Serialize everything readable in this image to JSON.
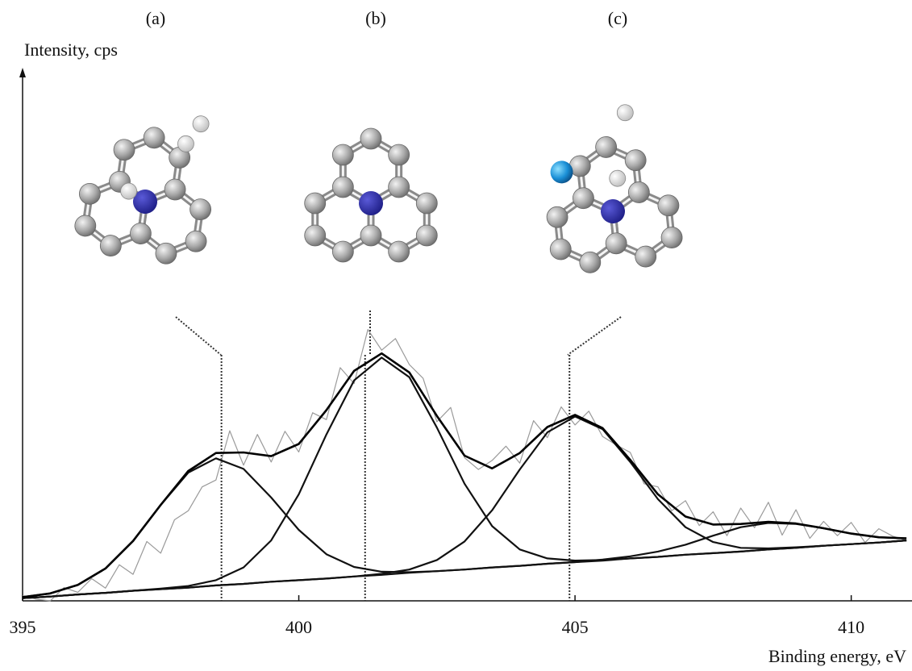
{
  "chart_data": {
    "type": "line",
    "y_label": "Intensity, cps",
    "x_label": "Binding energy, eV",
    "xlim": [
      395,
      411.1
    ],
    "ylim": [
      0,
      100
    ],
    "xticks": [
      395,
      400,
      405,
      410
    ],
    "panels": [
      {
        "label": "(a)",
        "x": 398.6
      },
      {
        "label": "(b)",
        "x": 401.2
      },
      {
        "label": "(c)",
        "x": 404.9
      }
    ],
    "x": [
      395,
      395.5,
      396,
      396.5,
      397,
      397.5,
      398,
      398.5,
      399,
      399.5,
      400,
      400.5,
      401,
      401.5,
      402,
      402.5,
      403,
      403.5,
      404,
      404.5,
      405,
      405.5,
      406,
      406.5,
      407,
      407.5,
      408,
      408.5,
      409,
      409.5,
      410,
      410.5,
      411
    ],
    "series": [
      {
        "color": "#9a9a9a",
        "line_width": 1.2,
        "x": [
          395,
          395.25,
          395.5,
          395.75,
          396,
          396.25,
          396.5,
          396.75,
          397,
          397.25,
          397.5,
          397.75,
          398,
          398.25,
          398.5,
          398.75,
          399,
          399.25,
          399.5,
          399.75,
          400,
          400.25,
          400.5,
          400.75,
          401,
          401.25,
          401.5,
          401.75,
          402,
          402.25,
          402.5,
          402.75,
          403,
          403.25,
          403.5,
          403.75,
          404,
          404.25,
          404.5,
          404.75,
          405,
          405.25,
          405.5,
          405.75,
          406,
          406.25,
          406.5,
          406.75,
          407,
          407.25,
          407.5,
          407.75,
          408,
          408.25,
          408.5,
          408.75,
          409,
          409.25,
          409.5,
          409.75,
          410,
          410.25,
          410.5,
          410.75,
          411
        ],
        "values": [
          1.0,
          0.3,
          0.0,
          2.5,
          1.6,
          4.2,
          2.4,
          6.8,
          5.0,
          11.2,
          9.0,
          15.3,
          17.0,
          21.5,
          22.8,
          32.1,
          25.6,
          31.4,
          26.2,
          32.0,
          28.1,
          35.5,
          34.2,
          44.0,
          41.0,
          51.2,
          47.3,
          49.5,
          44.6,
          42.0,
          33.8,
          36.5,
          27.0,
          24.8,
          26.5,
          29.2,
          26.0,
          34.0,
          30.8,
          36.6,
          33.2,
          35.8,
          31.0,
          29.4,
          28.0,
          22.1,
          21.5,
          17.0,
          18.9,
          14.2,
          16.8,
          12.3,
          17.5,
          13.8,
          18.6,
          12.4,
          17.2,
          11.8,
          15.0,
          12.3,
          14.8,
          11.0,
          13.6,
          12.2,
          11.4
        ]
      },
      {
        "color": "#3d3d24",
        "line_width": 1.6,
        "values": [
          0.5,
          0.8,
          1.2,
          1.5,
          1.9,
          2.2,
          2.5,
          2.9,
          3.2,
          3.6,
          3.9,
          4.2,
          4.6,
          4.9,
          5.3,
          5.6,
          5.9,
          6.3,
          6.6,
          7.0,
          7.3,
          7.6,
          8.0,
          8.3,
          8.7,
          9.0,
          9.3,
          9.7,
          10.0,
          10.4,
          10.7,
          11.0,
          11.4
        ]
      },
      {
        "color": "#111111",
        "line_width": 2.2,
        "values": [
          0.7,
          1.4,
          3.0,
          6.1,
          11.3,
          18.1,
          24.2,
          26.9,
          24.9,
          19.5,
          13.4,
          8.8,
          6.4,
          5.5,
          5.4,
          5.6,
          5.9,
          6.3,
          6.6,
          7.0,
          7.3,
          7.6,
          8.0,
          8.3,
          8.7,
          9.0,
          9.3,
          9.7,
          10.0,
          10.4,
          10.7,
          11.0,
          11.4
        ]
      },
      {
        "color": "#111111",
        "line_width": 2.2,
        "values": [
          0.5,
          0.8,
          1.2,
          1.5,
          1.9,
          2.3,
          2.8,
          3.9,
          6.3,
          11.4,
          20.1,
          31.4,
          41.6,
          45.9,
          42.2,
          32.7,
          22.1,
          14.1,
          9.7,
          8.0,
          7.6,
          7.7,
          8.0,
          8.3,
          8.7,
          9.0,
          9.3,
          9.7,
          10.0,
          10.4,
          10.7,
          11.0,
          11.4
        ]
      },
      {
        "color": "#111111",
        "line_width": 2.2,
        "values": [
          0.5,
          0.8,
          1.2,
          1.5,
          1.9,
          2.2,
          2.5,
          2.9,
          3.2,
          3.6,
          3.9,
          4.2,
          4.6,
          5.1,
          5.9,
          7.7,
          11.2,
          17.1,
          24.8,
          31.8,
          34.8,
          32.4,
          26.2,
          19.2,
          13.9,
          11.1,
          10.0,
          9.9,
          10.1,
          10.4,
          10.7,
          11.0,
          11.4
        ]
      },
      {
        "color": "#111111",
        "line_width": 2.2,
        "values": [
          0.5,
          0.8,
          1.2,
          1.5,
          1.9,
          2.2,
          2.5,
          2.9,
          3.2,
          3.6,
          3.9,
          4.2,
          4.6,
          4.9,
          5.3,
          5.6,
          5.9,
          6.3,
          6.6,
          7.0,
          7.3,
          7.8,
          8.4,
          9.3,
          10.6,
          12.3,
          13.9,
          14.7,
          14.5,
          13.7,
          12.7,
          12.0,
          11.8
        ]
      },
      {
        "color": "#000000",
        "line_width": 2.6,
        "values": [
          0.7,
          1.4,
          3.0,
          6.1,
          11.3,
          18.1,
          24.5,
          27.9,
          28.0,
          27.3,
          29.6,
          36.0,
          43.4,
          46.7,
          43.1,
          34.9,
          27.4,
          25.0,
          27.9,
          32.8,
          35.1,
          32.6,
          26.6,
          20.1,
          15.9,
          14.4,
          14.5,
          14.9,
          14.6,
          13.7,
          12.7,
          12.0,
          11.8
        ]
      }
    ]
  }
}
